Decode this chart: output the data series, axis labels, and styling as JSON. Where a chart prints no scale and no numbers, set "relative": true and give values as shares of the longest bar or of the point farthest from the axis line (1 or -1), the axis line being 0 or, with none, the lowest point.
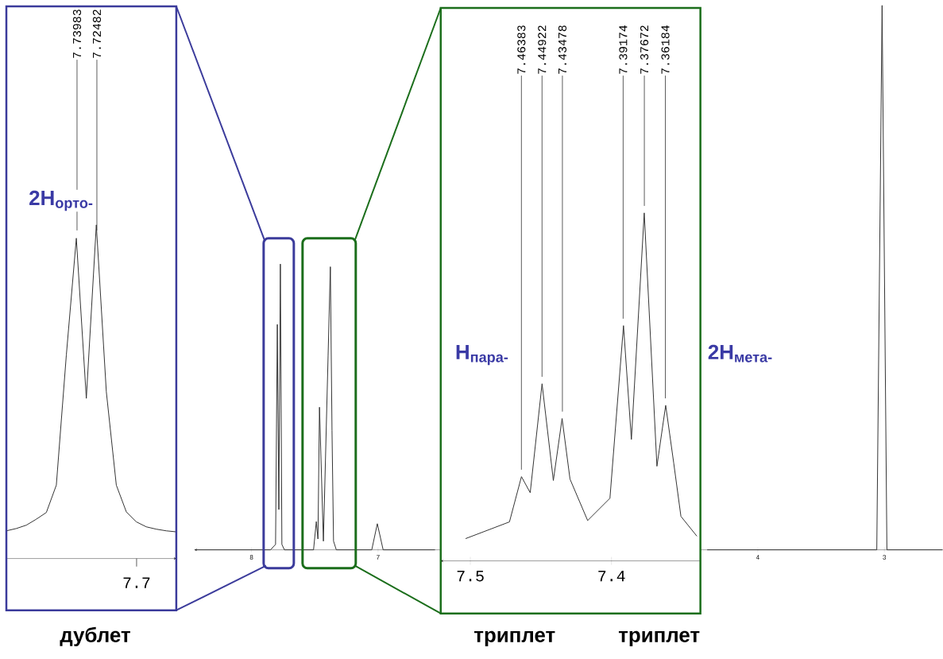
{
  "chart_data": [
    {
      "type": "line",
      "relative": true,
      "categories": [
        null,
        null,
        null,
        null,
        null,
        null,
        null,
        null,
        null,
        null,
        null,
        null,
        null,
        null,
        null,
        null,
        null,
        null
      ],
      "series": [
        {
          "color": "#333333",
          "values": [
            0.083,
            0.09,
            0.1,
            0.118,
            0.138,
            0.22,
            0.61,
            0.96,
            0.48,
            1,
            0.5,
            0.22,
            0.14,
            0.11,
            0.095,
            0.088,
            0.083,
            0.08
          ]
        }
      ],
      "annotations": [
        "7.73983",
        "7.72482",
        "2H$_{орто-}$",
        "дублет",
        "7.7"
      ]
    },
    {
      "type": "line",
      "relative": true,
      "x": [
        8.45,
        7.85,
        7.81,
        7.796,
        7.784,
        7.772,
        7.76,
        7.74,
        7.51,
        7.488,
        7.475,
        7.463,
        7.432,
        7.395,
        7.377,
        7.364,
        7.352,
        7.33,
        7.05,
        7.006,
        6.96,
        6.55,
        6.0,
        4.4,
        3.06,
        3.018,
        2.98,
        2.54
      ],
      "series": [
        {
          "color": "#333333",
          "values": [
            0,
            0,
            0.01,
            0.414,
            0.074,
            0.525,
            0.01,
            0,
            0,
            0.052,
            0.02,
            0.262,
            0.016,
            0.356,
            0.52,
            0.219,
            0.016,
            0,
            0,
            0.048,
            0,
            0,
            null,
            0,
            0,
            1,
            0,
            0
          ]
        }
      ],
      "xlim": [
        8.45,
        2.54
      ],
      "xticks": [
        8,
        7,
        4,
        3
      ]
    },
    {
      "type": "line",
      "relative": true,
      "x": [
        7.5034,
        7.4723,
        7.4638,
        7.4576,
        7.4492,
        7.4412,
        7.435,
        7.4294,
        7.4169,
        7.4011,
        7.3915,
        7.3859,
        7.3768,
        7.3678,
        7.3616,
        7.3559,
        7.3508,
        7.3395
      ],
      "series": [
        {
          "color": "#333333",
          "values": [
            0.064,
            0.112,
            0.242,
            0.196,
            0.509,
            0.231,
            0.409,
            0.235,
            0.116,
            0.18,
            0.676,
            0.349,
            1,
            0.272,
            0.447,
            0.281,
            0.128,
            0.071
          ]
        }
      ],
      "xlim": [
        7.521,
        7.337
      ],
      "xticks": [
        7.5,
        7.4
      ],
      "annotations": [
        {
          "text": "7.46383",
          "x": 7.46383,
          "y": 0.242
        },
        {
          "text": "7.44922",
          "x": 7.44922,
          "y": 0.509
        },
        {
          "text": "7.43478",
          "x": 7.43478,
          "y": 0.409
        },
        {
          "text": "7.39174",
          "x": 7.39174,
          "y": 0.676
        },
        {
          "text": "7.37672",
          "x": 7.37672,
          "y": 1
        },
        {
          "text": "7.36184",
          "x": 7.36184,
          "y": 0.447
        },
        "H$_{пара-}$",
        "2H$_{мета-}$",
        "триплет",
        "триплет"
      ]
    }
  ]
}
